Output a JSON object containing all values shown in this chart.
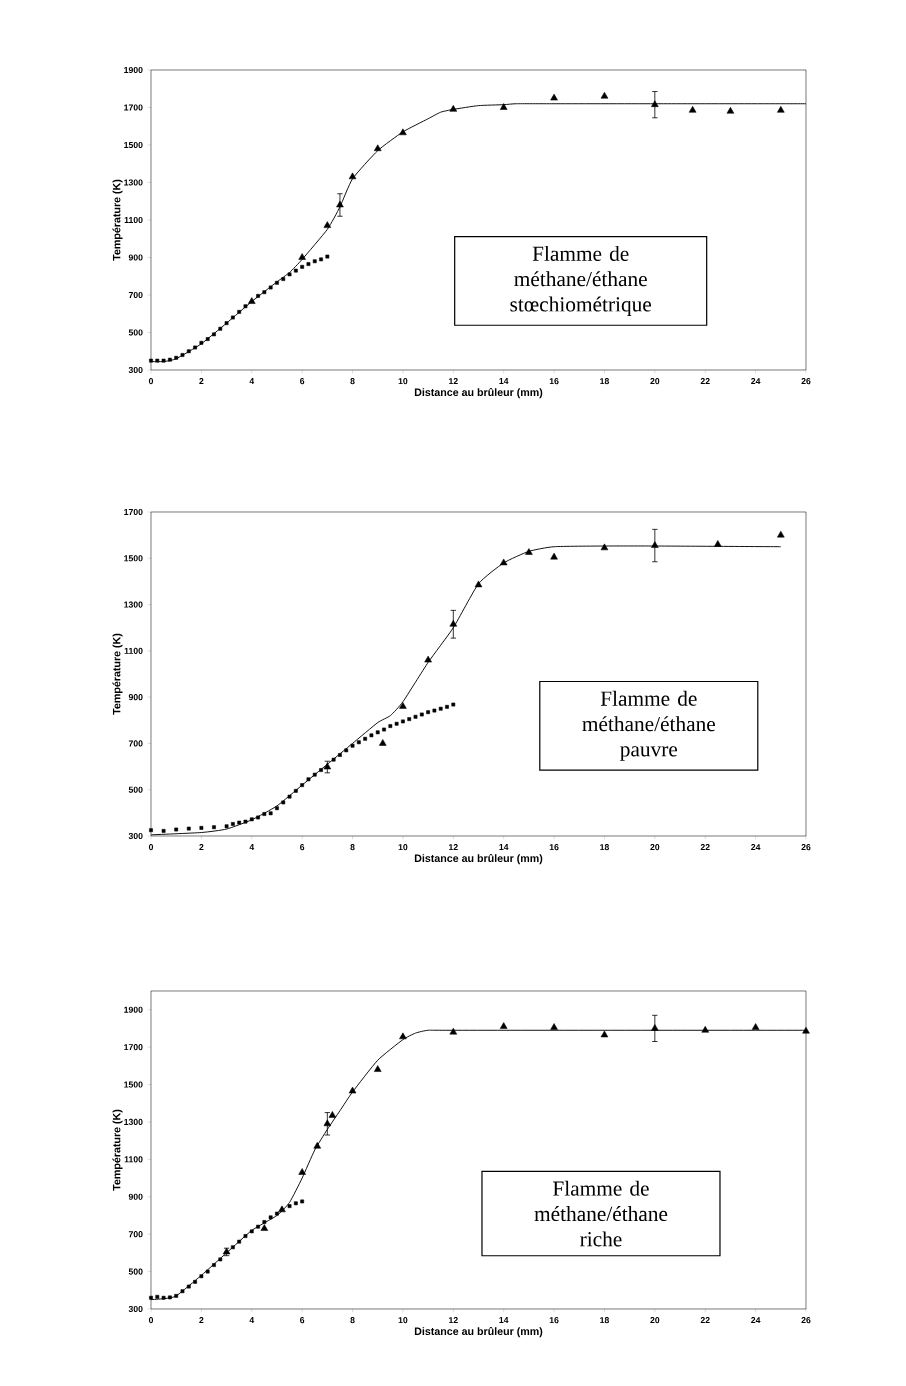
{
  "chart_data": [
    {
      "type": "scatter",
      "xlabel": "Distance au brûleur (mm)",
      "ylabel": "Température (K)",
      "xlim": [
        0,
        26
      ],
      "xticks": [
        0,
        2,
        4,
        6,
        8,
        10,
        12,
        14,
        16,
        18,
        20,
        22,
        24,
        26
      ],
      "ylim": [
        300,
        1900
      ],
      "yticks": [
        300,
        500,
        700,
        900,
        1100,
        1300,
        1500,
        1700,
        1900
      ],
      "annotations": [
        "Flamme de méthane/éthane stœchiométrique"
      ],
      "series": [
        {
          "marker": "square",
          "color": "#000000",
          "x": [
            0,
            0.25,
            0.5,
            0.75,
            1,
            1.25,
            1.5,
            1.75,
            2,
            2.25,
            2.5,
            2.75,
            3,
            3.25,
            3.5,
            3.75,
            4,
            4.25,
            4.5,
            4.75,
            5,
            5.25,
            5.5,
            5.75,
            6,
            6.25,
            6.5,
            6.75,
            7
          ],
          "values": [
            350,
            350,
            350,
            355,
            365,
            380,
            400,
            420,
            445,
            465,
            490,
            520,
            550,
            580,
            610,
            640,
            null,
            695,
            715,
            740,
            765,
            785,
            810,
            830,
            850,
            865,
            880,
            890,
            905
          ]
        },
        {
          "marker": "triangle",
          "color": "#000000",
          "x": [
            4,
            6,
            7,
            7.5,
            8,
            9,
            10,
            12,
            14,
            16,
            18,
            20,
            21.5,
            23,
            25
          ],
          "values": [
            665,
            900,
            1070,
            1180,
            1330,
            1480,
            1565,
            1690,
            1700,
            1750,
            1760,
            1715,
            1685,
            1680,
            1685
          ],
          "errors": [
            null,
            null,
            null,
            60,
            null,
            null,
            null,
            null,
            null,
            null,
            null,
            70,
            null,
            null,
            null
          ]
        },
        {
          "type": "line",
          "color": "#000000",
          "x": [
            0,
            0.5,
            1,
            2,
            3,
            4,
            5,
            5.5,
            6,
            7,
            7.5,
            8,
            9,
            10,
            11,
            11.5,
            12,
            13,
            14,
            14.5,
            16,
            20,
            26
          ],
          "values": [
            345,
            345,
            360,
            440,
            550,
            665,
            770,
            820,
            890,
            1050,
            1170,
            1320,
            1470,
            1570,
            1640,
            1675,
            1690,
            1710,
            1715,
            1720,
            1720,
            1720,
            1720
          ]
        }
      ]
    },
    {
      "type": "scatter",
      "xlabel": "Distance au brûleur (mm)",
      "ylabel": "Température (K)",
      "xlim": [
        0,
        26
      ],
      "xticks": [
        0,
        2,
        4,
        6,
        8,
        10,
        12,
        14,
        16,
        18,
        20,
        22,
        24,
        26
      ],
      "ylim": [
        300,
        1700
      ],
      "yticks": [
        300,
        500,
        700,
        900,
        1100,
        1300,
        1500,
        1700
      ],
      "annotations": [
        "Flamme de méthane/éthane pauvre"
      ],
      "series": [
        {
          "marker": "square",
          "color": "#000000",
          "x": [
            0,
            0.5,
            1,
            1.5,
            2,
            2.5,
            3,
            3.25,
            3.5,
            3.75,
            4,
            4.25,
            4.5,
            4.75,
            5,
            5.25,
            5.5,
            5.75,
            6,
            6.25,
            6.5,
            6.75,
            7,
            7.25,
            7.5,
            7.75,
            8,
            8.25,
            8.5,
            8.75,
            9,
            9.25,
            9.5,
            9.75,
            10,
            10.25,
            10.5,
            10.75,
            11,
            11.25,
            11.5,
            11.75,
            12
          ],
          "values": [
            325,
            322,
            328,
            332,
            335,
            338,
            342,
            352,
            358,
            362,
            372,
            380,
            395,
            398,
            420,
            445,
            470,
            495,
            520,
            545,
            565,
            585,
            null,
            630,
            650,
            670,
            690,
            705,
            720,
            735,
            748,
            760,
            775,
            785,
            795,
            805,
            815,
            825,
            835,
            842,
            850,
            858,
            868
          ]
        },
        {
          "marker": "triangle",
          "color": "#000000",
          "x": [
            7,
            9.2,
            10,
            11,
            12,
            13,
            14,
            15,
            16,
            18,
            20,
            22.5,
            25
          ],
          "values": [
            598,
            700,
            860,
            1060,
            1215,
            1385,
            1480,
            1525,
            1505,
            1545,
            1555,
            1560,
            1600
          ],
          "errors": [
            25,
            null,
            null,
            null,
            60,
            null,
            null,
            null,
            null,
            null,
            70,
            null,
            null
          ]
        },
        {
          "type": "line",
          "color": "#000000",
          "x": [
            0,
            2,
            3,
            4,
            5,
            6,
            7,
            8,
            9,
            9.5,
            10,
            11,
            12,
            13,
            14,
            15,
            16,
            18,
            20,
            25
          ],
          "values": [
            305,
            315,
            330,
            370,
            430,
            520,
            610,
            700,
            790,
            820,
            880,
            1050,
            1200,
            1390,
            1480,
            1530,
            1550,
            1553,
            1553,
            1550
          ]
        }
      ]
    },
    {
      "type": "scatter",
      "xlabel": "Distance au brûleur (mm)",
      "ylabel": "Température (K)",
      "xlim": [
        0,
        26
      ],
      "xticks": [
        0,
        2,
        4,
        6,
        8,
        10,
        12,
        14,
        16,
        18,
        20,
        22,
        24,
        26
      ],
      "ylim": [
        300,
        2000
      ],
      "yticks": [
        300,
        500,
        700,
        900,
        1100,
        1300,
        1500,
        1700,
        1900
      ],
      "annotations": [
        "Flamme de méthane/éthane riche"
      ],
      "series": [
        {
          "marker": "square",
          "color": "#000000",
          "x": [
            0,
            0.25,
            0.5,
            0.75,
            1,
            1.25,
            1.5,
            1.75,
            2,
            2.25,
            2.5,
            2.75,
            3,
            3.25,
            3.5,
            3.75,
            4,
            4.25,
            4.5,
            4.75,
            5,
            5.25,
            5.5,
            5.75,
            6
          ],
          "values": [
            360,
            365,
            360,
            362,
            370,
            395,
            420,
            445,
            475,
            500,
            535,
            565,
            null,
            630,
            660,
            690,
            715,
            740,
            765,
            790,
            810,
            null,
            850,
            865,
            875
          ]
        },
        {
          "marker": "triangle",
          "color": "#000000",
          "x": [
            3,
            4.5,
            5.2,
            6,
            6.6,
            7,
            7.2,
            8,
            9,
            10,
            12,
            14,
            16,
            18,
            20,
            22,
            24,
            26
          ],
          "values": [
            605,
            730,
            830,
            1030,
            1170,
            1290,
            1335,
            1465,
            1580,
            1755,
            1780,
            1810,
            1805,
            1765,
            1800,
            1790,
            1805,
            1785
          ],
          "errors": [
            20,
            null,
            null,
            null,
            null,
            60,
            null,
            null,
            null,
            null,
            null,
            null,
            null,
            null,
            70,
            null,
            null,
            null
          ]
        },
        {
          "type": "line",
          "color": "#000000",
          "x": [
            0,
            0.5,
            1,
            2,
            3,
            4,
            5,
            5.5,
            6,
            6.5,
            7,
            7.5,
            8,
            9,
            10,
            10.5,
            11,
            12,
            26
          ],
          "values": [
            350,
            355,
            370,
            480,
            600,
            720,
            800,
            870,
            1000,
            1150,
            1260,
            1360,
            1460,
            1630,
            1740,
            1775,
            1790,
            1790,
            1790
          ]
        }
      ]
    }
  ]
}
